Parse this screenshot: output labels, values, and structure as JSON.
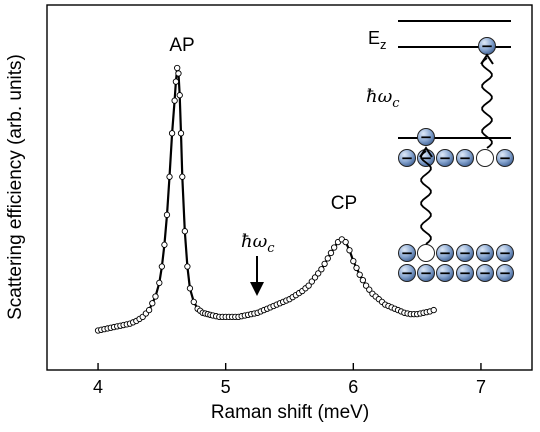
{
  "chart_data": {
    "type": "scatter",
    "title": "",
    "xlabel": "Raman shift (meV)",
    "ylabel": "Scattering efficiency (arb. units)",
    "xlim": [
      3.6,
      7.4
    ],
    "ylim": [
      0,
      1
    ],
    "xticks": [
      "4",
      "5",
      "6",
      "7"
    ],
    "yticks_visible": false,
    "grid": false,
    "marker": "open-circle",
    "line_color": "#000000",
    "series": [
      {
        "x": [
          4.0,
          4.05,
          4.1,
          4.15,
          4.2,
          4.25,
          4.3,
          4.35,
          4.4,
          4.45,
          4.48,
          4.5,
          4.52,
          4.54,
          4.56,
          4.58,
          4.6,
          4.61,
          4.62,
          4.63,
          4.64,
          4.65,
          4.66,
          4.68,
          4.7,
          4.72,
          4.75,
          4.78,
          4.82,
          4.86,
          4.9,
          4.95,
          5.0,
          5.05,
          5.1,
          5.15,
          5.2,
          5.25,
          5.3,
          5.35,
          5.4,
          5.45,
          5.5,
          5.55,
          5.6,
          5.65,
          5.7,
          5.75,
          5.8,
          5.85,
          5.88,
          5.91,
          5.94,
          5.97,
          6.0,
          6.05,
          6.1,
          6.15,
          6.2,
          6.25,
          6.3,
          6.35,
          6.4,
          6.45,
          6.5,
          6.55,
          6.6,
          6.63
        ],
        "y": [
          0.035,
          0.04,
          0.045,
          0.05,
          0.055,
          0.06,
          0.07,
          0.085,
          0.11,
          0.16,
          0.21,
          0.27,
          0.35,
          0.46,
          0.6,
          0.76,
          0.88,
          0.95,
          1.0,
          0.98,
          0.9,
          0.76,
          0.6,
          0.4,
          0.27,
          0.19,
          0.14,
          0.115,
          0.1,
          0.095,
          0.09,
          0.085,
          0.085,
          0.085,
          0.085,
          0.09,
          0.095,
          0.1,
          0.11,
          0.12,
          0.13,
          0.14,
          0.15,
          0.165,
          0.18,
          0.2,
          0.23,
          0.26,
          0.3,
          0.34,
          0.36,
          0.37,
          0.36,
          0.33,
          0.29,
          0.24,
          0.2,
          0.17,
          0.15,
          0.13,
          0.12,
          0.11,
          0.1,
          0.095,
          0.095,
          0.1,
          0.105,
          0.11
        ]
      }
    ],
    "annotations": [
      {
        "text": "AP",
        "x": 4.62
      },
      {
        "text": "CP",
        "x": 5.91
      },
      {
        "text": "ħω",
        "sub": "c",
        "x": 5.2
      }
    ]
  },
  "inset": {
    "level_label": "E",
    "level_sub": "z",
    "energy_label": "ħω",
    "energy_sub": "c",
    "electron_sign": "−",
    "electron_color": "#7f9fcc"
  }
}
